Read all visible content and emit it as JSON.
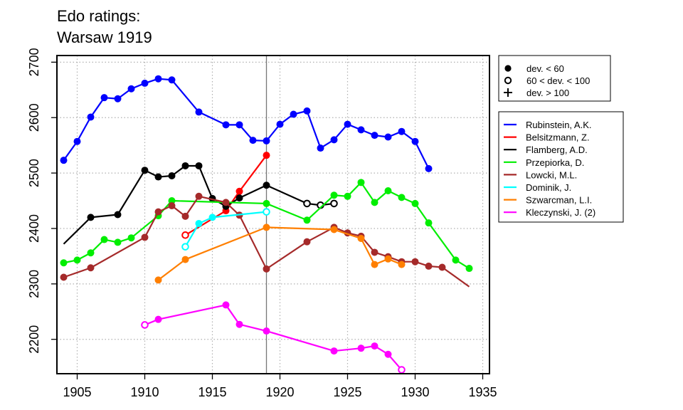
{
  "chart_data": {
    "type": "line",
    "title_lines": [
      "Edo ratings:",
      "Warsaw 1919"
    ],
    "xlabel": "",
    "ylabel": "",
    "xlim": [
      1903.5,
      1935.5
    ],
    "ylim": [
      2138,
      2712
    ],
    "x_ticks": [
      1905,
      1910,
      1915,
      1920,
      1925,
      1930,
      1935
    ],
    "y_ticks": [
      2200,
      2300,
      2400,
      2500,
      2600,
      2700
    ],
    "grid": true,
    "vertical_line_x": 1919,
    "legend_position": "top-right",
    "marker_legend": [
      {
        "symbol": "filled",
        "label": "dev. < 60"
      },
      {
        "symbol": "open",
        "label": "60 < dev. < 100"
      },
      {
        "symbol": "plus",
        "label": "dev. > 100"
      }
    ],
    "series": [
      {
        "name": "Rubinstein, A.K.",
        "color": "#0000ff",
        "points": [
          [
            1904,
            2523,
            "filled"
          ],
          [
            1905,
            2557,
            "filled"
          ],
          [
            1906,
            2601,
            "filled"
          ],
          [
            1907,
            2636,
            "filled"
          ],
          [
            1908,
            2634,
            "filled"
          ],
          [
            1909,
            2652,
            "filled"
          ],
          [
            1910,
            2662,
            "filled"
          ],
          [
            1911,
            2670,
            "filled"
          ],
          [
            1912,
            2668,
            "filled"
          ],
          [
            1914,
            2610,
            "filled"
          ],
          [
            1916,
            2587,
            "filled"
          ],
          [
            1917,
            2587,
            "filled"
          ],
          [
            1918,
            2559,
            "filled"
          ],
          [
            1919,
            2558,
            "filled"
          ],
          [
            1920,
            2588,
            "filled"
          ],
          [
            1921,
            2606,
            "filled"
          ],
          [
            1922,
            2612,
            "filled"
          ],
          [
            1923,
            2545,
            "filled"
          ],
          [
            1924,
            2560,
            "filled"
          ],
          [
            1925,
            2588,
            "filled"
          ],
          [
            1926,
            2578,
            "filled"
          ],
          [
            1927,
            2568,
            "filled"
          ],
          [
            1928,
            2565,
            "filled"
          ],
          [
            1929,
            2575,
            "filled"
          ],
          [
            1930,
            2557,
            "filled"
          ],
          [
            1931,
            2508,
            "filled"
          ]
        ]
      },
      {
        "name": "Belsitzmann, Z.",
        "color": "#ff0000",
        "points": [
          [
            1913,
            2388,
            "open"
          ],
          [
            1916,
            2432,
            "filled"
          ],
          [
            1917,
            2467,
            "filled"
          ],
          [
            1919,
            2532,
            "filled"
          ]
        ]
      },
      {
        "name": "Flamberg, A.D.",
        "color": "#000000",
        "points": [
          [
            1904,
            2372,
            "none"
          ],
          [
            1906,
            2420,
            "filled"
          ],
          [
            1908,
            2425,
            "filled"
          ],
          [
            1910,
            2505,
            "filled"
          ],
          [
            1911,
            2493,
            "filled"
          ],
          [
            1912,
            2495,
            "filled"
          ],
          [
            1913,
            2513,
            "filled"
          ],
          [
            1914,
            2513,
            "filled"
          ],
          [
            1915,
            2454,
            "filled"
          ],
          [
            1916,
            2440,
            "filled"
          ],
          [
            1917,
            2455,
            "filled"
          ],
          [
            1919,
            2478,
            "filled"
          ],
          [
            1922,
            2445,
            "open"
          ],
          [
            1923,
            2442,
            "open"
          ],
          [
            1924,
            2445,
            "open"
          ]
        ]
      },
      {
        "name": "Przepiorka, D.",
        "color": "#00ee00",
        "points": [
          [
            1904,
            2338,
            "filled"
          ],
          [
            1905,
            2343,
            "filled"
          ],
          [
            1906,
            2356,
            "filled"
          ],
          [
            1907,
            2380,
            "filled"
          ],
          [
            1908,
            2375,
            "filled"
          ],
          [
            1909,
            2383,
            "filled"
          ],
          [
            1911,
            2423,
            "filled"
          ],
          [
            1912,
            2450,
            "filled"
          ],
          [
            1919,
            2445,
            "filled"
          ],
          [
            1922,
            2415,
            "filled"
          ],
          [
            1924,
            2460,
            "filled"
          ],
          [
            1925,
            2458,
            "filled"
          ],
          [
            1926,
            2483,
            "filled"
          ],
          [
            1927,
            2447,
            "filled"
          ],
          [
            1928,
            2468,
            "filled"
          ],
          [
            1929,
            2456,
            "filled"
          ],
          [
            1930,
            2445,
            "filled"
          ],
          [
            1931,
            2410,
            "filled"
          ],
          [
            1933,
            2343,
            "filled"
          ],
          [
            1934,
            2328,
            "filled"
          ]
        ]
      },
      {
        "name": "Lowcki, M.L.",
        "color": "#a52a2a",
        "points": [
          [
            1904,
            2312,
            "filled"
          ],
          [
            1906,
            2329,
            "filled"
          ],
          [
            1910,
            2384,
            "filled"
          ],
          [
            1911,
            2430,
            "filled"
          ],
          [
            1912,
            2441,
            "filled"
          ],
          [
            1913,
            2422,
            "filled"
          ],
          [
            1914,
            2458,
            "filled"
          ],
          [
            1916,
            2447,
            "filled"
          ],
          [
            1917,
            2424,
            "filled"
          ],
          [
            1919,
            2327,
            "filled"
          ],
          [
            1922,
            2376,
            "filled"
          ],
          [
            1924,
            2402,
            "filled"
          ],
          [
            1925,
            2392,
            "filled"
          ],
          [
            1926,
            2386,
            "filled"
          ],
          [
            1927,
            2357,
            "filled"
          ],
          [
            1928,
            2349,
            "filled"
          ],
          [
            1929,
            2340,
            "filled"
          ],
          [
            1930,
            2340,
            "filled"
          ],
          [
            1931,
            2332,
            "filled"
          ],
          [
            1932,
            2330,
            "filled"
          ],
          [
            1934,
            2295,
            "none"
          ]
        ]
      },
      {
        "name": "Dominik, J.",
        "color": "#00ffff",
        "points": [
          [
            1913,
            2367,
            "open"
          ],
          [
            1914,
            2409,
            "filled"
          ],
          [
            1915,
            2420,
            "filled"
          ],
          [
            1919,
            2430,
            "open"
          ]
        ]
      },
      {
        "name": "Szwarcman, L.I.",
        "color": "#ff7f00",
        "points": [
          [
            1911,
            2307,
            "filled"
          ],
          [
            1913,
            2344,
            "filled"
          ],
          [
            1919,
            2402,
            "filled"
          ],
          [
            1924,
            2398,
            "filled"
          ],
          [
            1926,
            2382,
            "filled"
          ],
          [
            1927,
            2335,
            "filled"
          ],
          [
            1928,
            2345,
            "filled"
          ],
          [
            1929,
            2335,
            "filled"
          ]
        ]
      },
      {
        "name": "Kleczynski, J. (2)",
        "color": "#ff00ff",
        "points": [
          [
            1910,
            2226,
            "open"
          ],
          [
            1911,
            2236,
            "filled"
          ],
          [
            1916,
            2262,
            "filled"
          ],
          [
            1917,
            2227,
            "filled"
          ],
          [
            1919,
            2215,
            "filled"
          ],
          [
            1924,
            2179,
            "filled"
          ],
          [
            1926,
            2184,
            "filled"
          ],
          [
            1927,
            2188,
            "filled"
          ],
          [
            1928,
            2173,
            "filled"
          ],
          [
            1929,
            2145,
            "open"
          ]
        ]
      }
    ]
  }
}
